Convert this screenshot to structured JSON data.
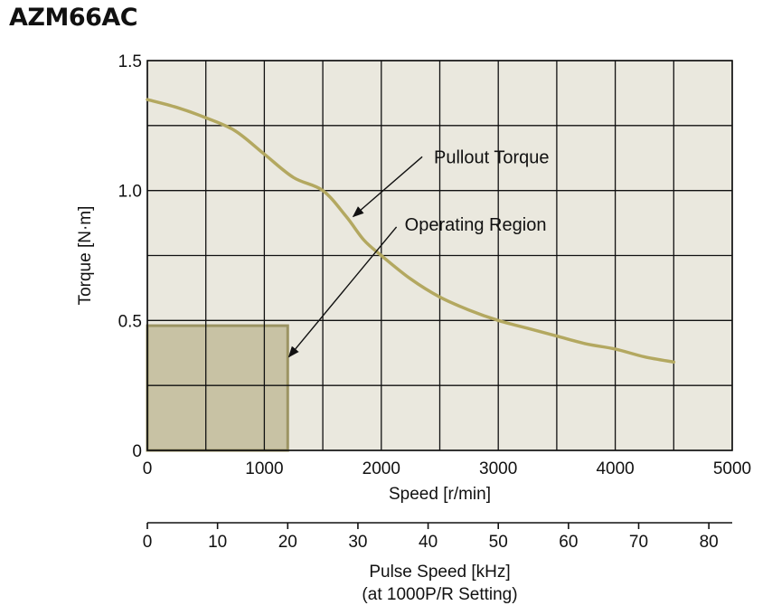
{
  "title": "AZM66AC",
  "chart_data": {
    "type": "line",
    "title": "AZM66AC",
    "xlabel": "Speed [r/min]",
    "ylabel": "Torque [N·m]",
    "xlim": [
      0,
      5000
    ],
    "ylim": [
      0,
      1.5
    ],
    "xticks": [
      0,
      1000,
      2000,
      3000,
      4000,
      5000
    ],
    "yticks": [
      0,
      0.5,
      1.0,
      1.5
    ],
    "xtick_labels": [
      "0",
      "1000",
      "2000",
      "3000",
      "4000",
      "5000"
    ],
    "ytick_labels": [
      "0",
      "0.5",
      "1.0",
      "1.5"
    ],
    "grid": true,
    "secondary_xaxis": {
      "label_line1": "Pulse Speed [kHz]",
      "label_line2": "(at 1000P/R Setting)",
      "range": [
        0,
        83.33
      ],
      "ticks": [
        0,
        10,
        20,
        30,
        40,
        50,
        60,
        70,
        80
      ],
      "tick_labels": [
        "0",
        "10",
        "20",
        "30",
        "40",
        "50",
        "60",
        "70",
        "80"
      ]
    },
    "series": [
      {
        "name": "Pullout Torque",
        "color": "#b3a860",
        "x": [
          0,
          250,
          500,
          750,
          1000,
          1250,
          1500,
          1700,
          1850,
          2000,
          2250,
          2500,
          2750,
          3000,
          3250,
          3500,
          3750,
          4000,
          4250,
          4500
        ],
        "y": [
          1.35,
          1.32,
          1.28,
          1.23,
          1.14,
          1.05,
          1.0,
          0.9,
          0.81,
          0.75,
          0.66,
          0.59,
          0.54,
          0.5,
          0.47,
          0.44,
          0.41,
          0.39,
          0.36,
          0.34
        ]
      }
    ],
    "operating_region": {
      "name": "Operating Region",
      "x_max": 1200,
      "torque": 0.48,
      "fill": "#c8c2a4",
      "edge": "#9c9463"
    },
    "annotations": [
      {
        "text": "Pullout Torque",
        "text_x": 2450,
        "text_y": 1.13,
        "arrow_from": [
          2350,
          1.13
        ],
        "arrow_to": [
          1760,
          0.9
        ]
      },
      {
        "text": "Operating Region",
        "text_x": 2200,
        "text_y": 0.87,
        "arrow_from": [
          2130,
          0.86
        ],
        "arrow_to": [
          1210,
          0.36
        ]
      }
    ],
    "plot_background": "#eae8de",
    "grid_color": "#111111"
  }
}
